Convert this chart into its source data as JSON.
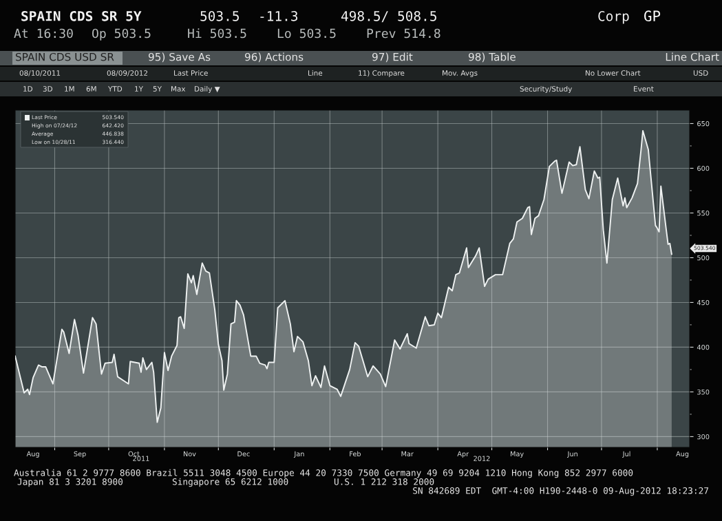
{
  "chart_data": {
    "type": "area",
    "title": "SPAIN CDS SR 5Y",
    "x": [
      "2011-08-10",
      "2011-08-15",
      "2011-08-17",
      "2011-08-18",
      "2011-08-20",
      "2011-08-23",
      "2011-08-25",
      "2011-08-27",
      "2011-08-31",
      "2011-09-05",
      "2011-09-06",
      "2011-09-09",
      "2011-09-12",
      "2011-09-14",
      "2011-09-17",
      "2011-09-22",
      "2011-09-24",
      "2011-09-27",
      "2011-09-29",
      "2011-10-03",
      "2011-10-04",
      "2011-10-06",
      "2011-10-12",
      "2011-10-13",
      "2011-10-18",
      "2011-10-19",
      "2011-10-20",
      "2011-10-22",
      "2011-10-25",
      "2011-10-26",
      "2011-10-28",
      "2011-10-30",
      "2011-11-01",
      "2011-11-03",
      "2011-11-05",
      "2011-11-08",
      "2011-11-09",
      "2011-11-10",
      "2011-11-12",
      "2011-11-14",
      "2011-11-16",
      "2011-11-17",
      "2011-11-19",
      "2011-11-22",
      "2011-11-24",
      "2011-11-26",
      "2011-11-29",
      "2011-12-01",
      "2011-12-03",
      "2011-12-04",
      "2011-12-06",
      "2011-12-08",
      "2011-12-10",
      "2011-12-11",
      "2011-12-13",
      "2011-12-15",
      "2011-12-19",
      "2011-12-22",
      "2011-12-24",
      "2011-12-27",
      "2011-12-28",
      "2011-12-29",
      "2012-01-01",
      "2012-01-03",
      "2012-01-07",
      "2012-01-10",
      "2012-01-12",
      "2012-01-14",
      "2012-01-17",
      "2012-01-20",
      "2012-01-22",
      "2012-01-24",
      "2012-01-27",
      "2012-01-29",
      "2012-02-01",
      "2012-02-05",
      "2012-02-07",
      "2012-02-08",
      "2012-02-12",
      "2012-02-15",
      "2012-02-17",
      "2012-02-22",
      "2012-02-25",
      "2012-02-29",
      "2012-03-03",
      "2012-03-08",
      "2012-03-11",
      "2012-03-15",
      "2012-03-16",
      "2012-03-20",
      "2012-03-25",
      "2012-03-27",
      "2012-03-30",
      "2012-04-01",
      "2012-04-03",
      "2012-04-07",
      "2012-04-09",
      "2012-04-11",
      "2012-04-13",
      "2012-04-17",
      "2012-04-18",
      "2012-04-22",
      "2012-04-24",
      "2012-04-27",
      "2012-04-29",
      "2012-05-03",
      "2012-05-07",
      "2012-05-11",
      "2012-05-13",
      "2012-05-15",
      "2012-05-18",
      "2012-05-21",
      "2012-05-22",
      "2012-05-23",
      "2012-05-25",
      "2012-05-27",
      "2012-05-29",
      "2012-05-30",
      "2012-06-02",
      "2012-06-05",
      "2012-06-06",
      "2012-06-09",
      "2012-06-13",
      "2012-06-15",
      "2012-06-17",
      "2012-06-19",
      "2012-06-22",
      "2012-06-24",
      "2012-06-27",
      "2012-06-29",
      "2012-06-30",
      "2012-07-02",
      "2012-07-04",
      "2012-07-07",
      "2012-07-10",
      "2012-07-13",
      "2012-07-14",
      "2012-07-15",
      "2012-07-18",
      "2012-07-21",
      "2012-07-23",
      "2012-07-24",
      "2012-07-27",
      "2012-07-31",
      "2012-08-01",
      "2012-08-02",
      "2012-08-03",
      "2012-08-06",
      "2012-08-07",
      "2012-08-08",
      "2012-08-09"
    ],
    "series": [
      {
        "name": "Last Price",
        "color": "#eef1f1",
        "values": [
          390,
          349,
          353,
          347,
          366,
          380,
          378,
          378,
          359,
          420,
          417,
          393,
          431,
          413,
          371,
          433,
          426,
          370,
          382,
          383,
          392,
          367,
          359,
          384,
          382,
          372,
          388,
          375,
          383,
          372,
          316,
          332,
          394,
          374,
          390,
          402,
          433,
          434,
          421,
          482,
          472,
          480,
          459,
          494,
          485,
          483,
          442,
          403,
          385,
          352,
          370,
          426,
          428,
          452,
          447,
          436,
          390,
          390,
          382,
          380,
          376,
          383,
          383,
          444,
          452,
          426,
          395,
          412,
          406,
          385,
          357,
          368,
          355,
          379,
          357,
          353,
          345,
          351,
          375,
          405,
          401,
          367,
          379,
          370,
          356,
          408,
          398,
          415,
          404,
          399,
          434,
          424,
          425,
          438,
          433,
          467,
          463,
          481,
          483,
          511,
          489,
          502,
          511,
          468,
          476,
          481,
          481,
          516,
          521,
          540,
          544,
          556,
          557,
          526,
          544,
          547,
          559,
          565,
          602,
          608,
          609,
          572,
          607,
          603,
          604,
          624,
          576,
          566,
          597,
          589,
          590,
          531,
          494,
          565,
          589,
          558,
          567,
          556,
          567,
          583,
          621,
          642,
          621,
          536,
          533,
          529,
          580,
          531,
          515,
          516,
          504
        ]
      }
    ],
    "xlim": [
      "2011-08-10",
      "2012-08-19"
    ],
    "xticks": [
      {
        "value": "2011-09-01",
        "label": null
      },
      {
        "value": "2011-10-01",
        "label": null
      },
      {
        "value": "2011-11-01",
        "label": null
      },
      {
        "value": "2011-12-01",
        "label": null
      },
      {
        "value": "2012-01-01",
        "label": null
      },
      {
        "value": "2012-02-01",
        "label": null
      },
      {
        "value": "2012-03-01",
        "label": null
      },
      {
        "value": "2012-04-01",
        "label": null
      },
      {
        "value": "2012-05-01",
        "label": null
      },
      {
        "value": "2012-06-01",
        "label": null
      },
      {
        "value": "2012-07-01",
        "label": null
      },
      {
        "value": "2012-08-01",
        "label": null
      },
      {
        "value": "2011-08-20",
        "label": "Aug"
      },
      {
        "value": "2011-09-15",
        "label": "Sep"
      },
      {
        "value": "2011-10-15",
        "label": "Oct"
      },
      {
        "value": "2011-11-15",
        "label": "Nov"
      },
      {
        "value": "2011-12-15",
        "label": "Dec"
      },
      {
        "value": "2012-01-15",
        "label": "Jan"
      },
      {
        "value": "2012-02-15",
        "label": "Feb"
      },
      {
        "value": "2012-03-15",
        "label": "Mar"
      },
      {
        "value": "2012-04-15",
        "label": "Apr"
      },
      {
        "value": "2012-05-15",
        "label": "May"
      },
      {
        "value": "2012-06-15",
        "label": "Jun"
      },
      {
        "value": "2012-07-15",
        "label": "Jul"
      },
      {
        "value": "2012-08-15",
        "label": "Aug"
      }
    ],
    "ylim": [
      288,
      665
    ],
    "yticks": [
      300,
      {
        "value": 325,
        "label": null
      },
      350,
      {
        "value": 375,
        "label": null
      },
      400,
      {
        "value": 425,
        "label": null
      },
      450,
      {
        "value": 475,
        "label": null
      },
      500,
      {
        "value": 525,
        "label": null
      },
      550,
      {
        "value": 575,
        "label": null
      },
      600,
      {
        "value": 625,
        "label": null
      },
      650
    ],
    "grid": true,
    "legend": "top left",
    "annotations": [
      "503.5",
      "-11.3",
      "498.5/ 508.5",
      "Corp",
      "GP",
      "At 16:30",
      "Op 503.5",
      "Hi 503.5",
      "Lo 503.5",
      "Prev 514.8",
      "SPAIN CDS USD SR",
      "95) Save As",
      "96) Actions",
      "97) Edit",
      "98) Table",
      "Line Chart",
      "08/10/2011",
      "08/09/2012",
      "Last Price",
      "Line",
      "11) Compare",
      "Mov. Avgs",
      "No Lower Chart",
      "USD",
      "1D",
      "3D",
      "1M",
      "6M",
      "YTD",
      "1Y",
      "5Y",
      "Max",
      "Daily ▼",
      "Security/Study",
      "Event",
      "503.540",
      "High on 07/24/12",
      "642.420",
      "Average",
      "446.838",
      "Low on 10/28/11",
      "316.440",
      "2011",
      "2012",
      "Australia 61 2 9777 8600 Brazil 5511 3048 4500 Europe 44 20 7330 7500 Germany 49 69 9204 1210 Hong Kong 852 2977 6000",
      "Japan 81 3 3201 8900",
      "Singapore 65 6212 1000",
      "U.S. 1 212 318 2000",
      "SN 842689 EDT  GMT-4:00 H190-2448-0 09-Aug-2012 18:23:27",
      "503.540"
    ]
  }
}
